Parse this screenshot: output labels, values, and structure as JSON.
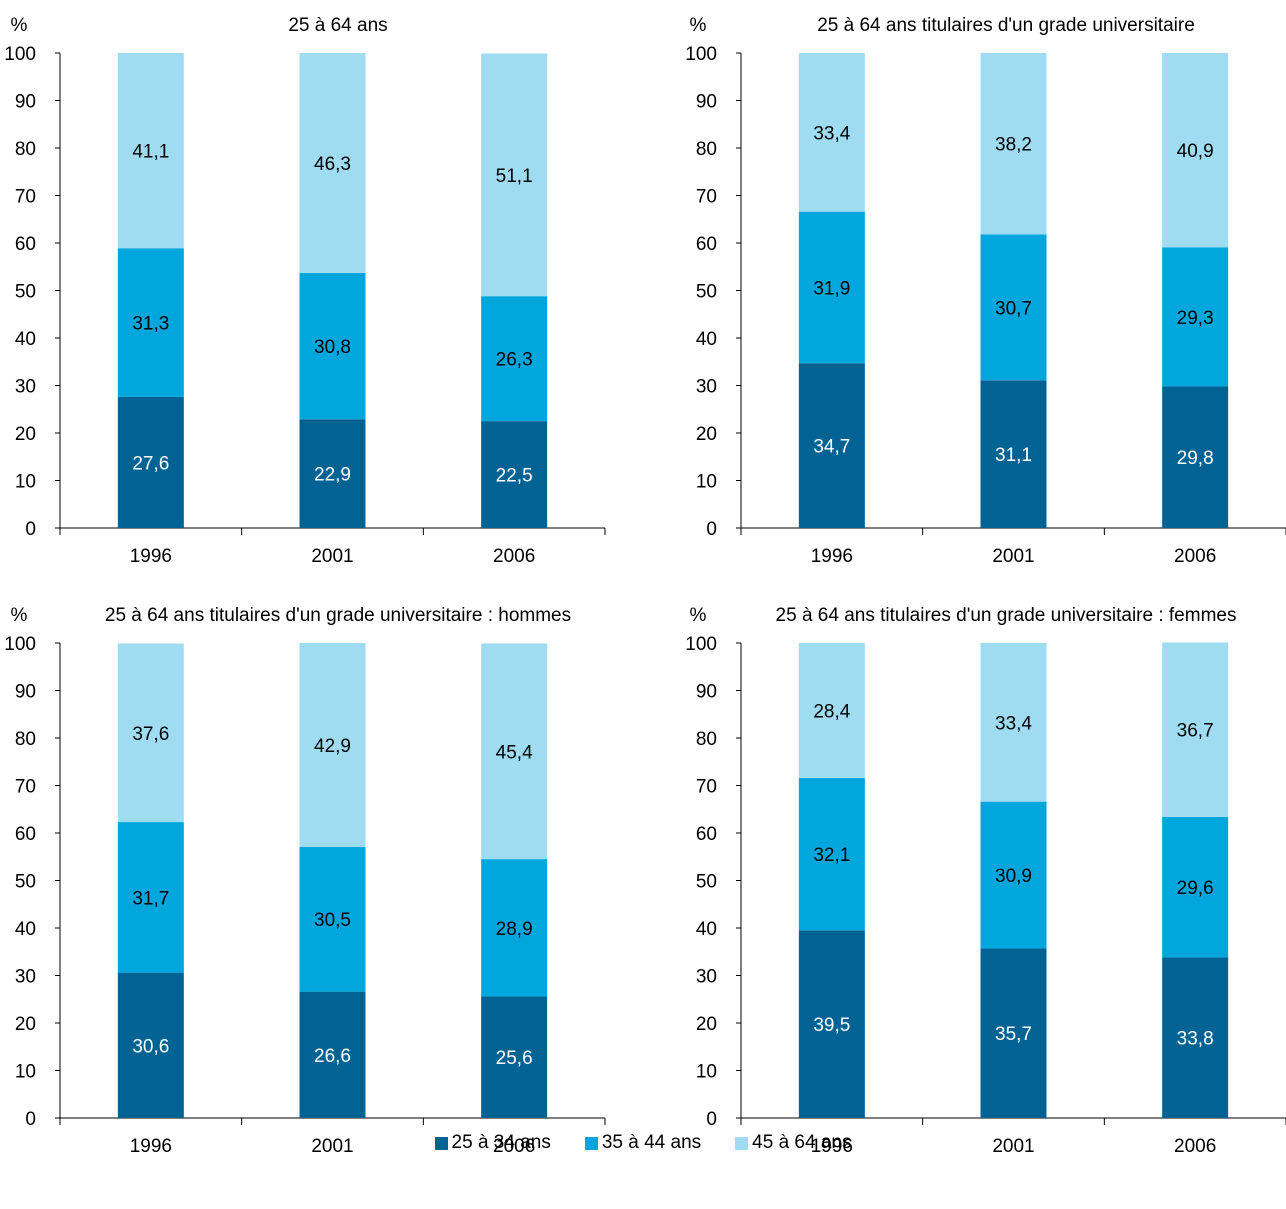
{
  "legend": [
    {
      "label": "25 à 34 ans",
      "color": "#006394"
    },
    {
      "label": "35 à 44 ans",
      "color": "#00a6dc"
    },
    {
      "label": "45 à 64 ans",
      "color": "#9fdcf2"
    }
  ],
  "chart_data": [
    {
      "type": "bar",
      "stacked": true,
      "title": "25 à 64 ans",
      "ylabel": "%",
      "ylim": [
        0,
        100
      ],
      "yticks": [
        "0",
        "10",
        "20",
        "30",
        "40",
        "50",
        "60",
        "70",
        "80",
        "90",
        "100"
      ],
      "categories": [
        "1996",
        "2001",
        "2006"
      ],
      "series": [
        {
          "name": "25 à 34 ans",
          "values": [
            27.6,
            22.9,
            22.5
          ],
          "labels": [
            "27,6",
            "22,9",
            "22,5"
          ]
        },
        {
          "name": "35 à 44 ans",
          "values": [
            31.3,
            30.8,
            26.3
          ],
          "labels": [
            "31,3",
            "30,8",
            "26,3"
          ]
        },
        {
          "name": "45 à 64 ans",
          "values": [
            41.1,
            46.3,
            51.1
          ],
          "labels": [
            "41,1",
            "46,3",
            "51,1"
          ]
        }
      ]
    },
    {
      "type": "bar",
      "stacked": true,
      "title": "25 à 64 ans titulaires d'un grade universitaire",
      "ylabel": "%",
      "ylim": [
        0,
        100
      ],
      "yticks": [
        "0",
        "10",
        "20",
        "30",
        "40",
        "50",
        "60",
        "70",
        "80",
        "90",
        "100"
      ],
      "categories": [
        "1996",
        "2001",
        "2006"
      ],
      "series": [
        {
          "name": "25 à 34 ans",
          "values": [
            34.7,
            31.1,
            29.8
          ],
          "labels": [
            "34,7",
            "31,1",
            "29,8"
          ]
        },
        {
          "name": "35 à 44 ans",
          "values": [
            31.9,
            30.7,
            29.3
          ],
          "labels": [
            "31,9",
            "30,7",
            "29,3"
          ]
        },
        {
          "name": "45 à 64 ans",
          "values": [
            33.4,
            38.2,
            40.9
          ],
          "labels": [
            "33,4",
            "38,2",
            "40,9"
          ]
        }
      ]
    },
    {
      "type": "bar",
      "stacked": true,
      "title": "25 à 64 ans titulaires d'un grade universitaire : hommes",
      "ylabel": "%",
      "ylim": [
        0,
        100
      ],
      "yticks": [
        "0",
        "10",
        "20",
        "30",
        "40",
        "50",
        "60",
        "70",
        "80",
        "90",
        "100"
      ],
      "categories": [
        "1996",
        "2001",
        "2006"
      ],
      "series": [
        {
          "name": "25 à 34 ans",
          "values": [
            30.6,
            26.6,
            25.6
          ],
          "labels": [
            "30,6",
            "26,6",
            "25,6"
          ]
        },
        {
          "name": "35 à 44 ans",
          "values": [
            31.7,
            30.5,
            28.9
          ],
          "labels": [
            "31,7",
            "30,5",
            "28,9"
          ]
        },
        {
          "name": "45 à 64 ans",
          "values": [
            37.6,
            42.9,
            45.4
          ],
          "labels": [
            "37,6",
            "42,9",
            "45,4"
          ]
        }
      ]
    },
    {
      "type": "bar",
      "stacked": true,
      "title": "25 à 64 ans titulaires d'un grade universitaire : femmes",
      "ylabel": "%",
      "ylim": [
        0,
        100
      ],
      "yticks": [
        "0",
        "10",
        "20",
        "30",
        "40",
        "50",
        "60",
        "70",
        "80",
        "90",
        "100"
      ],
      "categories": [
        "1996",
        "2001",
        "2006"
      ],
      "series": [
        {
          "name": "25 à 34 ans",
          "values": [
            39.5,
            35.7,
            33.8
          ],
          "labels": [
            "39,5",
            "35,7",
            "33,8"
          ]
        },
        {
          "name": "35 à 44 ans",
          "values": [
            32.1,
            30.9,
            29.6
          ],
          "labels": [
            "32,1",
            "30,9",
            "29,6"
          ]
        },
        {
          "name": "45 à 64 ans",
          "values": [
            28.4,
            33.4,
            36.7
          ],
          "labels": [
            "28,4",
            "33,4",
            "36,7"
          ]
        }
      ]
    }
  ]
}
